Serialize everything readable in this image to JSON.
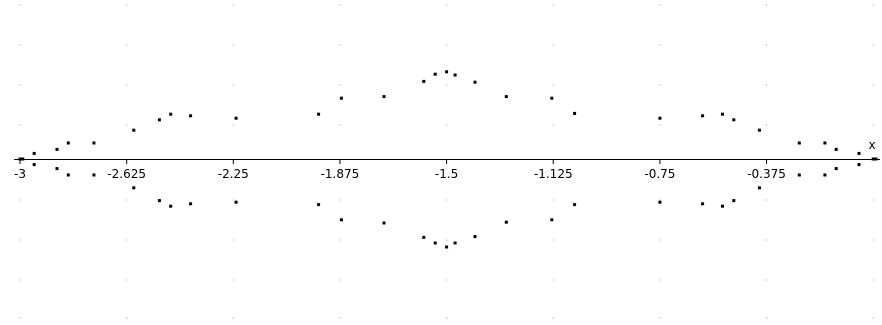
{
  "chart_data": {
    "type": "scatter",
    "title": "",
    "xlabel": "x",
    "ylabel": "",
    "xlim": [
      -3.0,
      0.05
    ],
    "ylim": [
      -1.95,
      1.95
    ],
    "grid": true,
    "grid_style": "dotted points",
    "x_ticks": [
      -3,
      -2.625,
      -2.25,
      -1.875,
      -1.5,
      -1.125,
      -0.75,
      -0.375
    ],
    "x_tick_labels": [
      "-3",
      "-2.625",
      "-2.25",
      "-1.875",
      "-1.5",
      "-1.125",
      "-0.75",
      "-0.375"
    ],
    "point_color": "#000000",
    "axis_color": "#000000",
    "grid_color": "#9a9a9a",
    "series": [
      {
        "points": [
          [
            -3.0,
            0
          ],
          [
            -2.99,
            0
          ],
          [
            -2.95,
            0.07
          ],
          [
            -2.95,
            -0.07
          ],
          [
            -2.87,
            0.12
          ],
          [
            -2.87,
            -0.12
          ],
          [
            -2.83,
            0.2
          ],
          [
            -2.83,
            -0.2
          ],
          [
            -2.74,
            0.2
          ],
          [
            -2.74,
            -0.2
          ],
          [
            -2.6,
            0.36
          ],
          [
            -2.6,
            -0.36
          ],
          [
            -2.51,
            0.49
          ],
          [
            -2.51,
            -0.52
          ],
          [
            -2.47,
            0.56
          ],
          [
            -2.47,
            -0.59
          ],
          [
            -2.4,
            0.54
          ],
          [
            -2.4,
            -0.56
          ],
          [
            -2.24,
            0.51
          ],
          [
            -2.24,
            -0.54
          ],
          [
            -1.95,
            0.56
          ],
          [
            -1.95,
            -0.57
          ],
          [
            -1.87,
            0.76
          ],
          [
            -1.87,
            -0.76
          ],
          [
            -1.72,
            0.78
          ],
          [
            -1.72,
            -0.8
          ],
          [
            -1.58,
            0.97
          ],
          [
            -1.58,
            -0.98
          ],
          [
            -1.54,
            1.06
          ],
          [
            -1.54,
            -1.05
          ],
          [
            -1.5,
            1.09
          ],
          [
            -1.5,
            -1.1
          ],
          [
            -1.47,
            1.05
          ],
          [
            -1.47,
            -1.05
          ],
          [
            -1.4,
            0.96
          ],
          [
            -1.4,
            -0.97
          ],
          [
            -1.29,
            0.78
          ],
          [
            -1.29,
            -0.79
          ],
          [
            -1.13,
            0.76
          ],
          [
            -1.13,
            -0.76
          ],
          [
            -1.05,
            0.57
          ],
          [
            -1.05,
            -0.57
          ],
          [
            -0.75,
            0.51
          ],
          [
            -0.75,
            -0.54
          ],
          [
            -0.6,
            0.54
          ],
          [
            -0.6,
            -0.56
          ],
          [
            -0.53,
            0.56
          ],
          [
            -0.53,
            -0.59
          ],
          [
            -0.49,
            0.49
          ],
          [
            -0.49,
            -0.52
          ],
          [
            -0.4,
            0.36
          ],
          [
            -0.4,
            -0.36
          ],
          [
            -0.26,
            0.2
          ],
          [
            -0.26,
            -0.2
          ],
          [
            -0.17,
            0.2
          ],
          [
            -0.17,
            -0.2
          ],
          [
            -0.13,
            0.12
          ],
          [
            -0.13,
            -0.12
          ],
          [
            -0.05,
            0.07
          ],
          [
            -0.05,
            -0.07
          ],
          [
            0.0,
            0
          ],
          [
            0.01,
            0
          ]
        ]
      }
    ]
  }
}
